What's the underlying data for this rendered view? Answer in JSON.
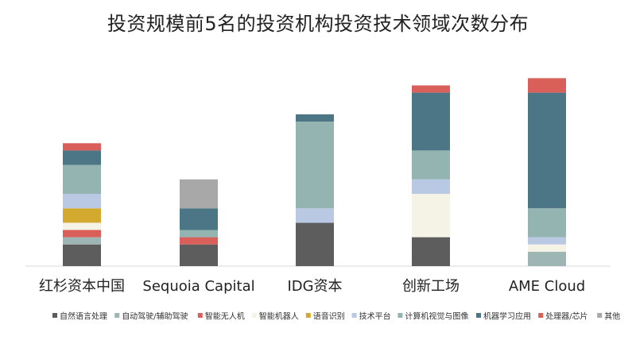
{
  "chart_data": {
    "type": "bar",
    "stacked": true,
    "title": "投资规模前5名的投资机构投资技术领域次数分布",
    "categories": [
      "红杉资本中国",
      "Sequoia Capital",
      "IDG资本",
      "创新工场",
      "AME Cloud"
    ],
    "series": [
      {
        "name": "自然语言处理",
        "color": "#5d5d5d",
        "values": [
          3,
          3,
          6,
          4,
          0
        ]
      },
      {
        "name": "自动驾驶/辅助驾驶",
        "color": "#9eb6b3",
        "values": [
          1,
          0,
          0,
          0,
          2
        ]
      },
      {
        "name": "智能无人机",
        "color": "#d9605a",
        "values": [
          1,
          1,
          0,
          0,
          0
        ]
      },
      {
        "name": "智能机器人",
        "color": "#f5f2e6",
        "values": [
          1,
          0,
          0,
          6,
          1
        ]
      },
      {
        "name": "语音识别",
        "color": "#d3aa2f",
        "values": [
          2,
          0,
          0,
          0,
          0
        ]
      },
      {
        "name": "技术平台",
        "color": "#b9c9e3",
        "values": [
          2,
          0,
          2,
          2,
          1
        ]
      },
      {
        "name": "计算机视觉与图像",
        "color": "#93b4b0",
        "values": [
          4,
          1,
          12,
          4,
          4
        ]
      },
      {
        "name": "机器学习应用",
        "color": "#4c7686",
        "values": [
          2,
          3,
          1,
          8,
          16
        ]
      },
      {
        "name": "处理器/芯片",
        "color": "#d9605a",
        "values": [
          1,
          0,
          0,
          1,
          2
        ]
      },
      {
        "name": "其他",
        "color": "#a8a8a8",
        "values": [
          0,
          4,
          0,
          0,
          0
        ]
      }
    ],
    "legend_position": "bottom",
    "grid": false,
    "ylim": [
      0,
      28
    ]
  }
}
